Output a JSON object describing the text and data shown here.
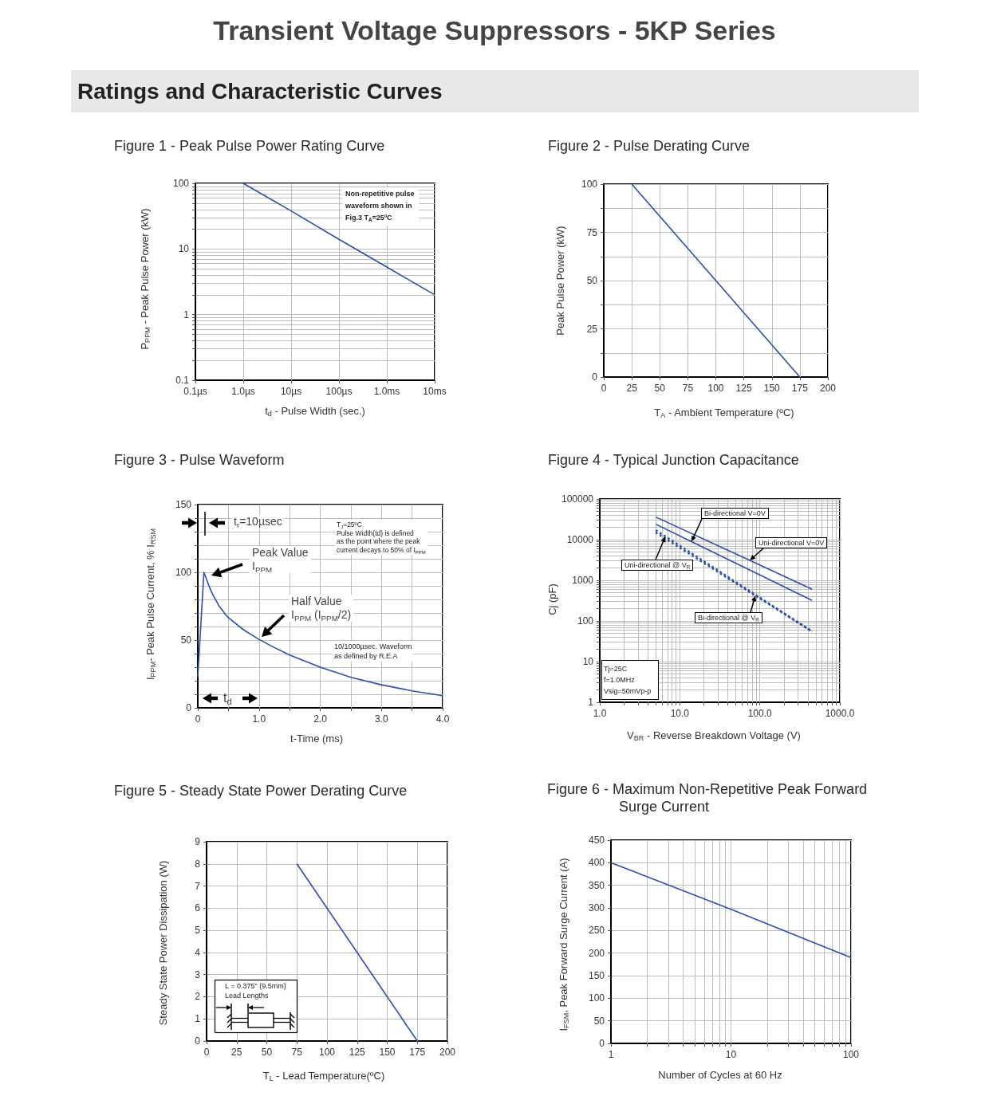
{
  "chart_data": [
    {
      "type": "line",
      "title": "Figure 1 - Peak Pulse Power Rating Curve",
      "xlabel": "t$_{d}$ - Pulse Width (sec.)",
      "ylabel": "P$_{PPM}$ - Peak Pulse Power (kW)",
      "annotations": [
        "Transient Voltage Suppressors - 5KP Series",
        "Ratings and Characteristic Curves",
        "Non-repetitive pulse\nwaveform shown in\nFig.3 T$_{A}$=25ºC"
      ],
      "log": "y",
      "grid": true,
      "categories": [
        "0.1µs",
        "1.0µs",
        "10µs",
        "100µs",
        "1.0ms",
        "10ms"
      ],
      "ylim": [
        0.1,
        100
      ],
      "yticks": [
        0.1,
        {
          "value": 0.2,
          "label": null
        },
        {
          "value": 0.3,
          "label": null
        },
        {
          "value": 0.4,
          "label": null
        },
        {
          "value": 0.5,
          "label": null
        },
        {
          "value": 0.6,
          "label": null
        },
        {
          "value": 0.7,
          "label": null
        },
        {
          "value": 0.8,
          "label": null
        },
        {
          "value": 0.9,
          "label": null
        },
        1,
        {
          "value": 2,
          "label": null
        },
        {
          "value": 3,
          "label": null
        },
        {
          "value": 4,
          "label": null
        },
        {
          "value": 5,
          "label": null
        },
        {
          "value": 6,
          "label": null
        },
        {
          "value": 7,
          "label": null
        },
        {
          "value": 8,
          "label": null
        },
        {
          "value": 9,
          "label": null
        },
        10,
        {
          "value": 20,
          "label": null
        },
        {
          "value": 30,
          "label": null
        },
        {
          "value": 40,
          "label": null
        },
        {
          "value": 50,
          "label": null
        },
        {
          "value": 60,
          "label": null
        },
        {
          "value": 70,
          "label": null
        },
        {
          "value": 80,
          "label": null
        },
        {
          "value": 90,
          "label": null
        },
        100
      ],
      "series": [
        {
          "color": "#2b4eb3",
          "values": [
            null,
            100,
            38,
            14,
            5.3,
            2
          ]
        }
      ]
    },
    {
      "type": "line",
      "title": "Figure 2 - Pulse Derating Curve",
      "xlabel": "T$_{A}$ -  Ambient Temperature (ºC)",
      "ylabel": "Peak Pulse Power (kW)",
      "grid": true,
      "xlim": [
        0,
        200
      ],
      "ylim": [
        0,
        100
      ],
      "xticks": [
        0,
        25,
        50,
        75,
        100,
        125,
        150,
        175,
        200
      ],
      "yticks": [
        0,
        {
          "value": 12.5,
          "label": null
        },
        25,
        {
          "value": 37.5,
          "label": null
        },
        50,
        {
          "value": 62.5,
          "label": null
        },
        75,
        {
          "value": 87.5,
          "label": null
        },
        100
      ],
      "series": [
        {
          "color": "#2b4eb3",
          "x": [
            25,
            175
          ],
          "values": [
            100,
            0
          ]
        }
      ]
    },
    {
      "type": "line",
      "title": "Figure 3 - Pulse Waveform",
      "xlabel": "t-Time (ms)",
      "ylabel": "I$_{PPM}$- Peak Pulse Current, % I$_{RSM}$",
      "annotations": [
        "t$_{r}$=10µsec",
        "Peak Value\nI$_{PPM}$",
        "Half Value\nI$_{PPM}$ (I$_{PPM}$/2)",
        "T$_{J}$=25ºC\nPulse Width(td) is defined\nas the point where the peak\ncurrent decays to 50% of I$_{PPM}$",
        "10/1000µsec. Waveform\nas defined by R.E.A",
        "t$_{d}$"
      ],
      "grid": true,
      "xlim": [
        0,
        4
      ],
      "ylim": [
        0,
        150
      ],
      "xticks": [
        0,
        {
          "value": 0.5,
          "label": null
        },
        {
          "value": 1,
          "label": "1.0"
        },
        {
          "value": 1.5,
          "label": null
        },
        {
          "value": 2,
          "label": "2.0"
        },
        {
          "value": 2.5,
          "label": null
        },
        {
          "value": 3,
          "label": "3.0"
        },
        {
          "value": 3.5,
          "label": null
        },
        {
          "value": 4,
          "label": "4.0"
        }
      ],
      "yticks": [
        0,
        {
          "value": 10,
          "label": null
        },
        {
          "value": 20,
          "label": null
        },
        {
          "value": 30,
          "label": null
        },
        {
          "value": 40,
          "label": null
        },
        50,
        {
          "value": 60,
          "label": null
        },
        {
          "value": 70,
          "label": null
        },
        {
          "value": 80,
          "label": null
        },
        {
          "value": 90,
          "label": null
        },
        100,
        {
          "value": 110,
          "label": null
        },
        {
          "value": 120,
          "label": null
        },
        {
          "value": 130,
          "label": null
        },
        {
          "value": 140,
          "label": null
        },
        150
      ],
      "series": [
        {
          "color": "#2b4eb3",
          "x": [
            0,
            0.1,
            0.15,
            0.2,
            0.25,
            0.3,
            0.35,
            0.4,
            0.45,
            0.5,
            0.75,
            1,
            1.25,
            1.5,
            2,
            2.5,
            3,
            3.5,
            4
          ],
          "values": [
            23,
            100,
            94,
            88,
            83,
            79,
            75,
            72,
            69,
            66.5,
            57.5,
            50.5,
            44.5,
            39,
            30,
            22.5,
            17,
            12.5,
            9
          ]
        }
      ]
    },
    {
      "type": "line",
      "title": "Figure 4 - Typical Junction Capacitance",
      "xlabel": "V$_{BR}$ - Reverse Breakdown Voltage (V)",
      "ylabel": "Cj (pF)",
      "annotations": [
        "Tj=25C\nf=1.0MHz\nVsig=50mVp-p"
      ],
      "log": "xy",
      "grid": true,
      "xlim": [
        1,
        1000
      ],
      "ylim": [
        1,
        100000
      ],
      "xticks": [
        {
          "value": 1,
          "label": "1.0"
        },
        {
          "value": 2,
          "label": null
        },
        {
          "value": 3,
          "label": null
        },
        {
          "value": 4,
          "label": null
        },
        {
          "value": 5,
          "label": null
        },
        {
          "value": 6,
          "label": null
        },
        {
          "value": 7,
          "label": null
        },
        {
          "value": 8,
          "label": null
        },
        {
          "value": 9,
          "label": null
        },
        {
          "value": 10,
          "label": "10.0"
        },
        {
          "value": 20,
          "label": null
        },
        {
          "value": 30,
          "label": null
        },
        {
          "value": 40,
          "label": null
        },
        {
          "value": 50,
          "label": null
        },
        {
          "value": 60,
          "label": null
        },
        {
          "value": 70,
          "label": null
        },
        {
          "value": 80,
          "label": null
        },
        {
          "value": 90,
          "label": null
        },
        {
          "value": 100,
          "label": "100.0"
        },
        {
          "value": 200,
          "label": null
        },
        {
          "value": 300,
          "label": null
        },
        {
          "value": 400,
          "label": null
        },
        {
          "value": 500,
          "label": null
        },
        {
          "value": 600,
          "label": null
        },
        {
          "value": 700,
          "label": null
        },
        {
          "value": 800,
          "label": null
        },
        {
          "value": 900,
          "label": null
        },
        {
          "value": 1000,
          "label": "1000.0"
        }
      ],
      "yticks": [
        1,
        {
          "value": 2,
          "label": null
        },
        {
          "value": 3,
          "label": null
        },
        {
          "value": 4,
          "label": null
        },
        {
          "value": 5,
          "label": null
        },
        {
          "value": 6,
          "label": null
        },
        {
          "value": 7,
          "label": null
        },
        {
          "value": 8,
          "label": null
        },
        {
          "value": 9,
          "label": null
        },
        10,
        {
          "value": 20,
          "label": null
        },
        {
          "value": 30,
          "label": null
        },
        {
          "value": 40,
          "label": null
        },
        {
          "value": 50,
          "label": null
        },
        {
          "value": 60,
          "label": null
        },
        {
          "value": 70,
          "label": null
        },
        {
          "value": 80,
          "label": null
        },
        {
          "value": 90,
          "label": null
        },
        100,
        {
          "value": 200,
          "label": null
        },
        {
          "value": 300,
          "label": null
        },
        {
          "value": 400,
          "label": null
        },
        {
          "value": 500,
          "label": null
        },
        {
          "value": 600,
          "label": null
        },
        {
          "value": 700,
          "label": null
        },
        {
          "value": 800,
          "label": null
        },
        {
          "value": 900,
          "label": null
        },
        1000,
        {
          "value": 2000,
          "label": null
        },
        {
          "value": 3000,
          "label": null
        },
        {
          "value": 4000,
          "label": null
        },
        {
          "value": 5000,
          "label": null
        },
        {
          "value": 6000,
          "label": null
        },
        {
          "value": 7000,
          "label": null
        },
        {
          "value": 8000,
          "label": null
        },
        {
          "value": 9000,
          "label": null
        },
        10000,
        {
          "value": 20000,
          "label": null
        },
        {
          "value": 30000,
          "label": null
        },
        {
          "value": 40000,
          "label": null
        },
        {
          "value": 50000,
          "label": null
        },
        {
          "value": 60000,
          "label": null
        },
        {
          "value": 70000,
          "label": null
        },
        {
          "value": 80000,
          "label": null
        },
        {
          "value": 90000,
          "label": null
        },
        100000
      ],
      "series": [
        {
          "name": "Uni-directional V=0V",
          "color": "#2b4eb3",
          "x": [
            5,
            75,
            450
          ],
          "values": [
            36000,
            3100,
            600
          ]
        },
        {
          "name": "Bi-directional V=0V",
          "color": "#2b4eb3",
          "x": [
            5,
            14,
            450
          ],
          "values": [
            24000,
            8900,
            320
          ]
        },
        {
          "name": "Uni-directional @ V$_{R}$",
          "color": "#2b4eb3",
          "line_style": "dotted",
          "x": [
            5,
            6.6,
            450
          ],
          "values": [
            17000,
            12000,
            55
          ]
        },
        {
          "name": "Bi-directional @ V$_{R}$",
          "color": "#2b4eb3",
          "line_style": "dotted",
          "x": [
            5,
            88,
            450
          ],
          "values": [
            15000,
            420,
            55
          ]
        }
      ]
    },
    {
      "type": "line",
      "title": "Figure 5 - Steady State Power Derating Curve",
      "xlabel": "T$_{L}$ - Lead Temperature(ºC)",
      "ylabel": "Steady State Power Dissipation (W)",
      "annotations": [
        "L = 0.375\" (9.5mm)\nLead Lengths"
      ],
      "grid": true,
      "xlim": [
        0,
        200
      ],
      "ylim": [
        0,
        9
      ],
      "xticks": [
        0,
        25,
        50,
        75,
        100,
        125,
        150,
        175,
        200
      ],
      "yticks": [
        0,
        1,
        2,
        3,
        4,
        5,
        6,
        7,
        8,
        9
      ],
      "series": [
        {
          "color": "#2b4eb3",
          "x": [
            75,
            175
          ],
          "values": [
            8,
            0
          ]
        }
      ]
    },
    {
      "type": "line",
      "title": "Figure 6 - Maximum Non-Repetitive Peak Forward Surge Current",
      "xlabel": "Number of Cycles at 60 Hz",
      "ylabel": "I$_{FSM}$, Peak Forward Surge Current (A)",
      "log": "x",
      "grid": true,
      "xlim": [
        1,
        100
      ],
      "ylim": [
        0,
        450
      ],
      "xticks": [
        1,
        {
          "value": 2,
          "label": null
        },
        {
          "value": 3,
          "label": null
        },
        {
          "value": 4,
          "label": null
        },
        {
          "value": 5,
          "label": null
        },
        {
          "value": 6,
          "label": null
        },
        {
          "value": 7,
          "label": null
        },
        {
          "value": 8,
          "label": null
        },
        {
          "value": 9,
          "label": null
        },
        10,
        {
          "value": 20,
          "label": null
        },
        {
          "value": 30,
          "label": null
        },
        {
          "value": 40,
          "label": null
        },
        {
          "value": 50,
          "label": null
        },
        {
          "value": 60,
          "label": null
        },
        {
          "value": 70,
          "label": null
        },
        {
          "value": 80,
          "label": null
        },
        {
          "value": 90,
          "label": null
        },
        100
      ],
      "yticks": [
        0,
        50,
        100,
        150,
        200,
        250,
        300,
        350,
        400,
        450
      ],
      "series": [
        {
          "color": "#2b4eb3",
          "x": [
            1,
            10,
            100
          ],
          "values": [
            400,
            297,
            190
          ]
        }
      ]
    }
  ]
}
